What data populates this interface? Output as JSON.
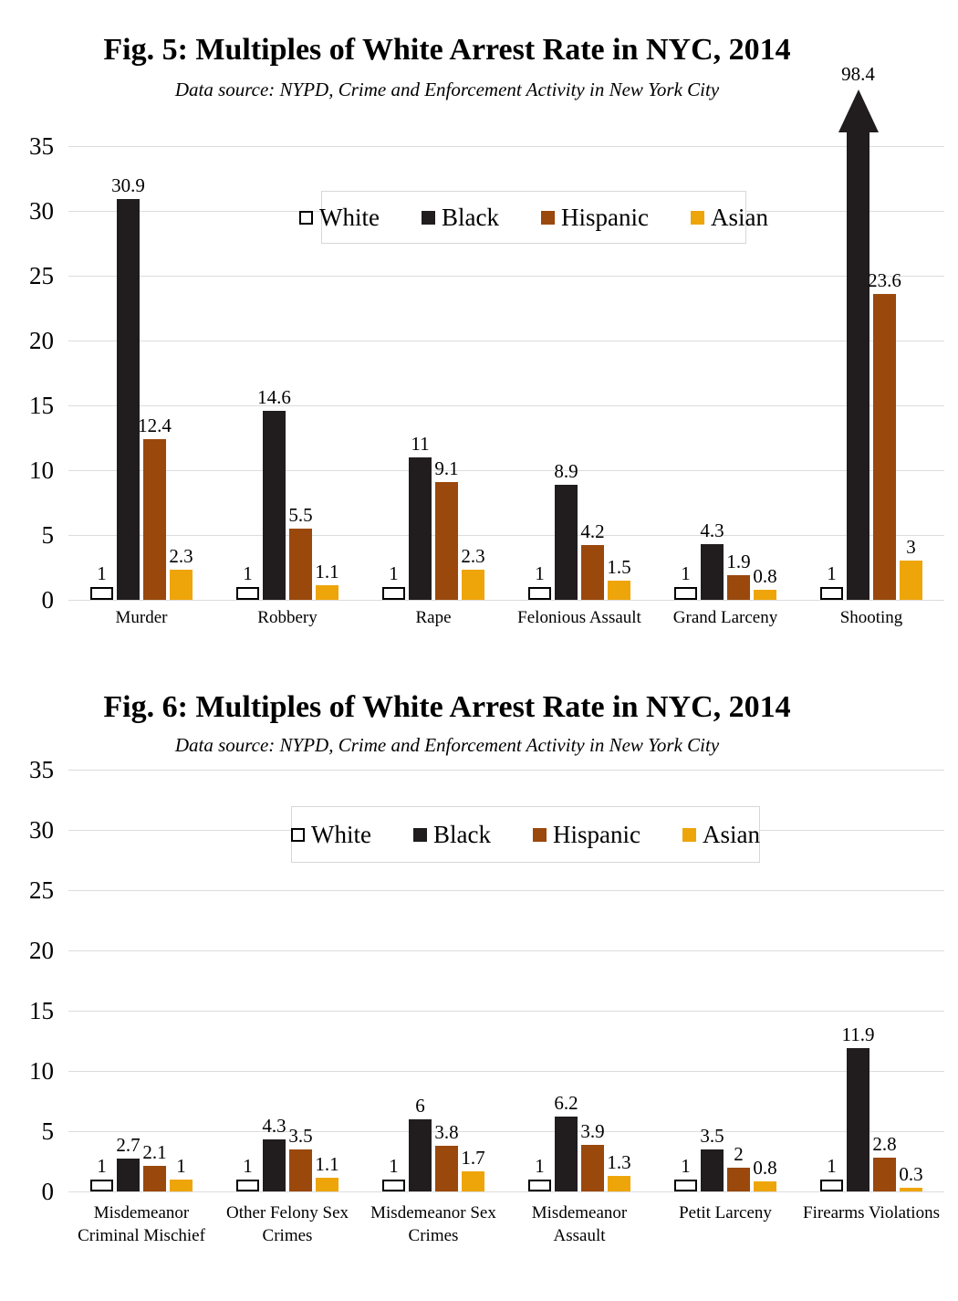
{
  "page": {
    "background": "#ffffff"
  },
  "colors": {
    "gridline": "#dcdcdc",
    "legend_border": "#d7d7d7",
    "text": "#000000"
  },
  "chart_data": [
    {
      "type": "bar",
      "title": "Fig. 5: Multiples of White Arrest Rate in NYC, 2014",
      "subtitle": "Data source: NYPD, Crime and Enforcement Activity in New York City",
      "categories": [
        "Murder",
        "Robbery",
        "Rape",
        "Felonious Assault",
        "Grand Larceny",
        "Shooting"
      ],
      "series": [
        {
          "name": "White",
          "color": "#ffffff",
          "border": "#000000",
          "values": [
            1,
            1,
            1,
            1,
            1,
            1
          ]
        },
        {
          "name": "Black",
          "color": "#211d1e",
          "values": [
            30.9,
            14.6,
            11,
            8.9,
            4.3,
            98.4
          ]
        },
        {
          "name": "Hispanic",
          "color": "#9a480c",
          "values": [
            12.4,
            5.5,
            9.1,
            4.2,
            1.9,
            23.6
          ]
        },
        {
          "name": "Asian",
          "color": "#eea50a",
          "values": [
            2.3,
            1.1,
            2.3,
            1.5,
            0.8,
            3
          ]
        }
      ],
      "ylim": [
        0,
        35
      ],
      "ytick_step": 5,
      "grid": true,
      "legend_position": "top-center",
      "annotation": "Black bar for Shooting (98.4) exceeds the axis maximum and is drawn as an upward arrow"
    },
    {
      "type": "bar",
      "title": "Fig. 6: Multiples of White Arrest Rate in NYC, 2014",
      "subtitle": "Data source: NYPD, Crime and Enforcement Activity in New York City",
      "categories": [
        "Misdemeanor Criminal Mischief",
        "Other Felony Sex Crimes",
        "Misdemeanor Sex Crimes",
        "Misdemeanor Assault",
        "Petit Larceny",
        "Firearms Violations"
      ],
      "series": [
        {
          "name": "White",
          "color": "#ffffff",
          "border": "#000000",
          "values": [
            1,
            1,
            1,
            1,
            1,
            1
          ]
        },
        {
          "name": "Black",
          "color": "#211d1e",
          "values": [
            2.7,
            4.3,
            6,
            6.2,
            3.5,
            11.9
          ]
        },
        {
          "name": "Hispanic",
          "color": "#9a480c",
          "values": [
            2.1,
            3.5,
            3.8,
            3.9,
            2,
            2.8
          ]
        },
        {
          "name": "Asian",
          "color": "#eea50a",
          "values": [
            1,
            1.1,
            1.7,
            1.3,
            0.8,
            0.3
          ]
        }
      ],
      "ylim": [
        0,
        35
      ],
      "ytick_step": 5,
      "grid": true,
      "legend_position": "top-center"
    }
  ]
}
